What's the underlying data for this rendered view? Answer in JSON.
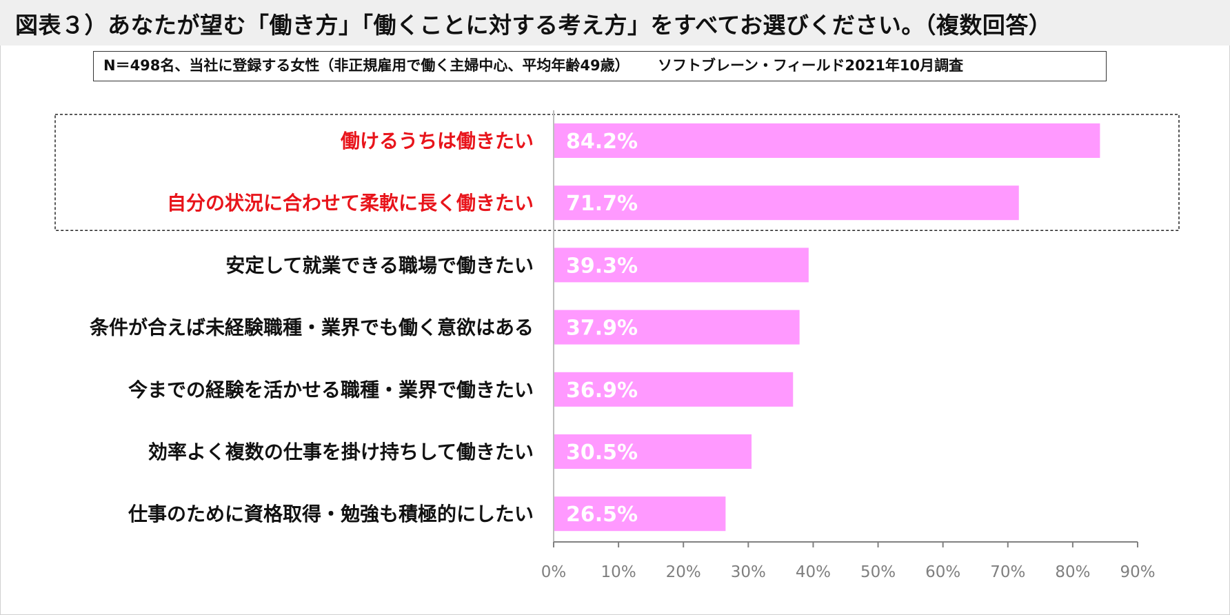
{
  "header": {
    "title": "図表３）あなたが望む「働き方」「働くことに対する考え方」をすべてお選びください。（複数回答）",
    "note_sample": "N＝498名、当社に登録する女性（非正規雇用で働く主婦中心、平均年齢49歳）",
    "note_source": "ソフトブレーン・フィールド2021年10月調査"
  },
  "colors": {
    "bar": "#ff99ff",
    "highlight_label": "#e8141b",
    "label": "#111111",
    "axis": "#808080",
    "tick_label": "#7f7f7f",
    "value_label": "#ffffff"
  },
  "chart_data": {
    "type": "bar",
    "orientation": "horizontal",
    "categories": [
      "働けるうちは働きたい",
      "自分の状況に合わせて柔軟に長く働きたい",
      "安定して就業できる職場で働きたい",
      "条件が合えば未経験職種・業界でも働く意欲はある",
      "今までの経験を活かせる職種・業界で働きたい",
      "効率よく複数の仕事を掛け持ちして働きたい",
      "仕事のために資格取得・勉強も積極的にしたい"
    ],
    "values": [
      84.2,
      71.7,
      39.3,
      37.9,
      36.9,
      30.5,
      26.5
    ],
    "value_labels": [
      "84.2%",
      "71.7%",
      "39.3%",
      "37.9%",
      "36.9%",
      "30.5%",
      "26.5%"
    ],
    "highlighted": [
      true,
      true,
      false,
      false,
      false,
      false,
      false
    ],
    "xlim": [
      0,
      90
    ],
    "x_ticks": [
      0,
      10,
      20,
      30,
      40,
      50,
      60,
      70,
      80,
      90
    ],
    "x_tick_labels": [
      "0%",
      "10%",
      "20%",
      "30%",
      "40%",
      "50%",
      "60%",
      "70%",
      "80%",
      "90%"
    ],
    "title": "",
    "xlabel": "",
    "ylabel": "",
    "grid": false,
    "legend": "none"
  }
}
